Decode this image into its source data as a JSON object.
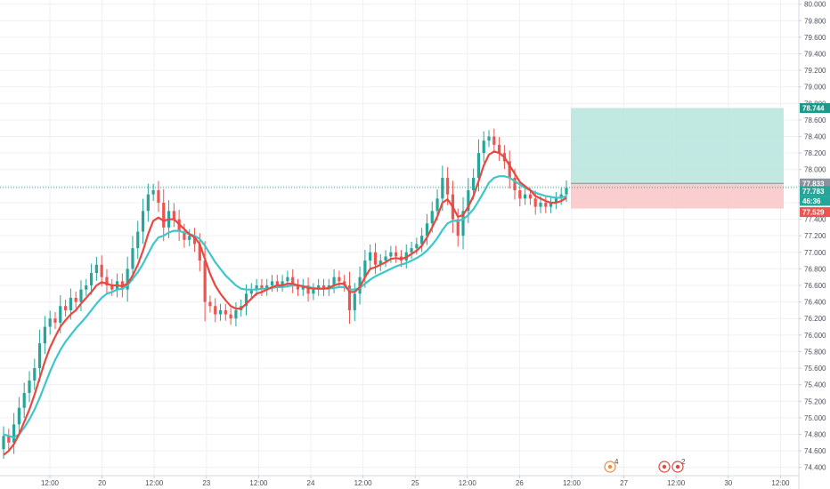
{
  "colors": {
    "up": "#26a69a",
    "down": "#ef5350",
    "ema_fast": "#e8483f",
    "ema_slow": "#3ec6c9",
    "grid": "#eef0f4",
    "profit_zone": "#b7e4dd",
    "loss_zone": "#f9c6c6",
    "axis_text": "#4a4e5a"
  },
  "chart_data": {
    "type": "candlestick",
    "y_axis": {
      "position": "right",
      "range": [
        74.3,
        80.05
      ],
      "ticks": [
        "80.000",
        "79.800",
        "79.600",
        "79.400",
        "79.200",
        "79.000",
        "78.800",
        "78.600",
        "78.400",
        "78.200",
        "78.000",
        "77.800",
        "77.600",
        "77.400",
        "77.200",
        "77.000",
        "76.800",
        "76.600",
        "76.400",
        "76.200",
        "76.000",
        "75.800",
        "75.600",
        "75.400",
        "75.200",
        "75.000",
        "74.800",
        "74.600",
        "74.400"
      ]
    },
    "x_axis": {
      "ticks": [
        "12:00",
        "20",
        "12:00",
        "23",
        "12:00",
        "24",
        "12:00",
        "25",
        "12:00",
        "26",
        "12:00",
        "27",
        "12:00",
        "30",
        "12:00"
      ]
    },
    "grid": true,
    "series": [
      {
        "type": "ohlc",
        "open": [
          74.62,
          74.78,
          74.7,
          74.92,
          75.12,
          75.3,
          75.45,
          75.6,
          75.9,
          76.1,
          76.2,
          76.15,
          76.35,
          76.3,
          76.45,
          76.4,
          76.55,
          76.6,
          76.75,
          76.85,
          76.7,
          76.6,
          76.55,
          76.65,
          76.55,
          76.8,
          77.05,
          77.25,
          77.5,
          77.7,
          77.75,
          77.6,
          77.3,
          77.5,
          77.4,
          77.25,
          77.15,
          77.2,
          77.1,
          76.9,
          76.4,
          76.35,
          76.25,
          76.3,
          76.25,
          76.2,
          76.3,
          76.35,
          76.5,
          76.55,
          76.6,
          76.55,
          76.6,
          76.65,
          76.6,
          76.65,
          76.7,
          76.6,
          76.55,
          76.6,
          76.5,
          76.55,
          76.6,
          76.55,
          76.6,
          76.7,
          76.65,
          76.6,
          76.3,
          76.5,
          76.7,
          76.9,
          77.0,
          76.85,
          76.9,
          76.95,
          77.0,
          76.95,
          76.9,
          77.0,
          77.05,
          77.1,
          77.2,
          77.35,
          77.5,
          77.65,
          77.9,
          77.7,
          77.4,
          77.2,
          77.5,
          77.75,
          77.9,
          78.2,
          78.35,
          78.4,
          78.3,
          78.2,
          78.1,
          77.9,
          77.75,
          77.65,
          77.7,
          77.65,
          77.55,
          77.6,
          77.55,
          77.6,
          77.65,
          77.7
        ],
        "close": [
          74.78,
          74.7,
          74.92,
          75.12,
          75.3,
          75.45,
          75.6,
          75.9,
          76.1,
          76.2,
          76.15,
          76.35,
          76.3,
          76.45,
          76.4,
          76.55,
          76.6,
          76.75,
          76.85,
          76.7,
          76.6,
          76.55,
          76.65,
          76.55,
          76.8,
          77.05,
          77.25,
          77.5,
          77.7,
          77.75,
          77.6,
          77.3,
          77.5,
          77.4,
          77.25,
          77.15,
          77.2,
          77.1,
          76.9,
          76.4,
          76.35,
          76.25,
          76.3,
          76.25,
          76.2,
          76.3,
          76.35,
          76.5,
          76.55,
          76.6,
          76.55,
          76.6,
          76.65,
          76.6,
          76.65,
          76.7,
          76.6,
          76.55,
          76.6,
          76.5,
          76.55,
          76.6,
          76.55,
          76.6,
          76.7,
          76.65,
          76.6,
          76.3,
          76.5,
          76.7,
          76.9,
          77.0,
          76.85,
          76.9,
          76.95,
          77.0,
          76.95,
          76.9,
          77.0,
          77.05,
          77.1,
          77.2,
          77.35,
          77.5,
          77.65,
          77.9,
          77.7,
          77.4,
          77.2,
          77.5,
          77.75,
          77.9,
          78.2,
          78.35,
          78.4,
          78.3,
          78.2,
          78.1,
          77.9,
          77.75,
          77.65,
          77.7,
          77.65,
          77.55,
          77.6,
          77.55,
          77.6,
          77.65,
          77.7,
          77.78
        ]
      },
      {
        "type": "line",
        "values": [
          74.55,
          74.6,
          74.68,
          74.8,
          74.95,
          75.1,
          75.28,
          75.48,
          75.68,
          75.85,
          75.98,
          76.1,
          76.18,
          76.25,
          76.3,
          76.38,
          76.45,
          76.52,
          76.6,
          76.64,
          76.62,
          76.6,
          76.6,
          76.59,
          76.62,
          76.72,
          76.85,
          77.02,
          77.22,
          77.38,
          77.42,
          77.38,
          77.4,
          77.4,
          77.34,
          77.28,
          77.22,
          77.18,
          77.1,
          76.92,
          76.74,
          76.6,
          76.5,
          76.42,
          76.35,
          76.32,
          76.32,
          76.38,
          76.44,
          76.5,
          76.52,
          76.55,
          76.58,
          76.6,
          76.6,
          76.62,
          76.62,
          76.6,
          76.59,
          76.57,
          76.56,
          76.56,
          76.56,
          76.57,
          76.6,
          76.62,
          76.62,
          76.52,
          76.52,
          76.58,
          76.7,
          76.8,
          76.82,
          76.85,
          76.88,
          76.92,
          76.93,
          76.92,
          76.94,
          76.98,
          77.02,
          77.08,
          77.18,
          77.3,
          77.43,
          77.6,
          77.64,
          77.55,
          77.43,
          77.45,
          77.55,
          77.68,
          77.86,
          78.05,
          78.18,
          78.22,
          78.2,
          78.15,
          78.05,
          77.95,
          77.85,
          77.8,
          77.75,
          77.68,
          77.65,
          77.62,
          77.6,
          77.6,
          77.62,
          77.66
        ]
      },
      {
        "type": "line",
        "values": [
          74.8,
          74.78,
          74.76,
          74.8,
          74.88,
          74.98,
          75.1,
          75.24,
          75.4,
          75.56,
          75.7,
          75.82,
          75.92,
          76.0,
          76.08,
          76.15,
          76.22,
          76.3,
          76.38,
          76.45,
          76.5,
          76.52,
          76.55,
          76.56,
          76.6,
          76.68,
          76.76,
          76.86,
          76.98,
          77.1,
          77.18,
          77.2,
          77.24,
          77.26,
          77.26,
          77.24,
          77.22,
          77.2,
          77.16,
          77.08,
          76.98,
          76.88,
          76.8,
          76.72,
          76.66,
          76.6,
          76.56,
          76.55,
          76.55,
          76.55,
          76.56,
          76.56,
          76.57,
          76.58,
          76.58,
          76.59,
          76.6,
          76.6,
          76.59,
          76.58,
          76.57,
          76.56,
          76.56,
          76.56,
          76.57,
          76.58,
          76.58,
          76.55,
          76.55,
          76.57,
          76.62,
          76.67,
          76.71,
          76.74,
          76.77,
          76.8,
          76.83,
          76.85,
          76.87,
          76.9,
          76.93,
          76.97,
          77.02,
          77.09,
          77.17,
          77.27,
          77.35,
          77.38,
          77.38,
          77.4,
          77.45,
          77.52,
          77.62,
          77.73,
          77.84,
          77.9,
          77.92,
          77.92,
          77.9,
          77.86,
          77.82,
          77.78,
          77.75,
          77.72,
          77.7,
          77.68,
          77.67,
          77.66,
          77.66,
          77.68
        ]
      }
    ],
    "position": {
      "target": 78.744,
      "entry": 77.833,
      "stop": 77.529
    },
    "last_price": 77.783,
    "price_labels": {
      "target": "78.744",
      "entry": "77.833",
      "last": "77.783",
      "countdown": "46:36",
      "stop": "77.529"
    },
    "event_markers": [
      "4",
      "2"
    ]
  }
}
